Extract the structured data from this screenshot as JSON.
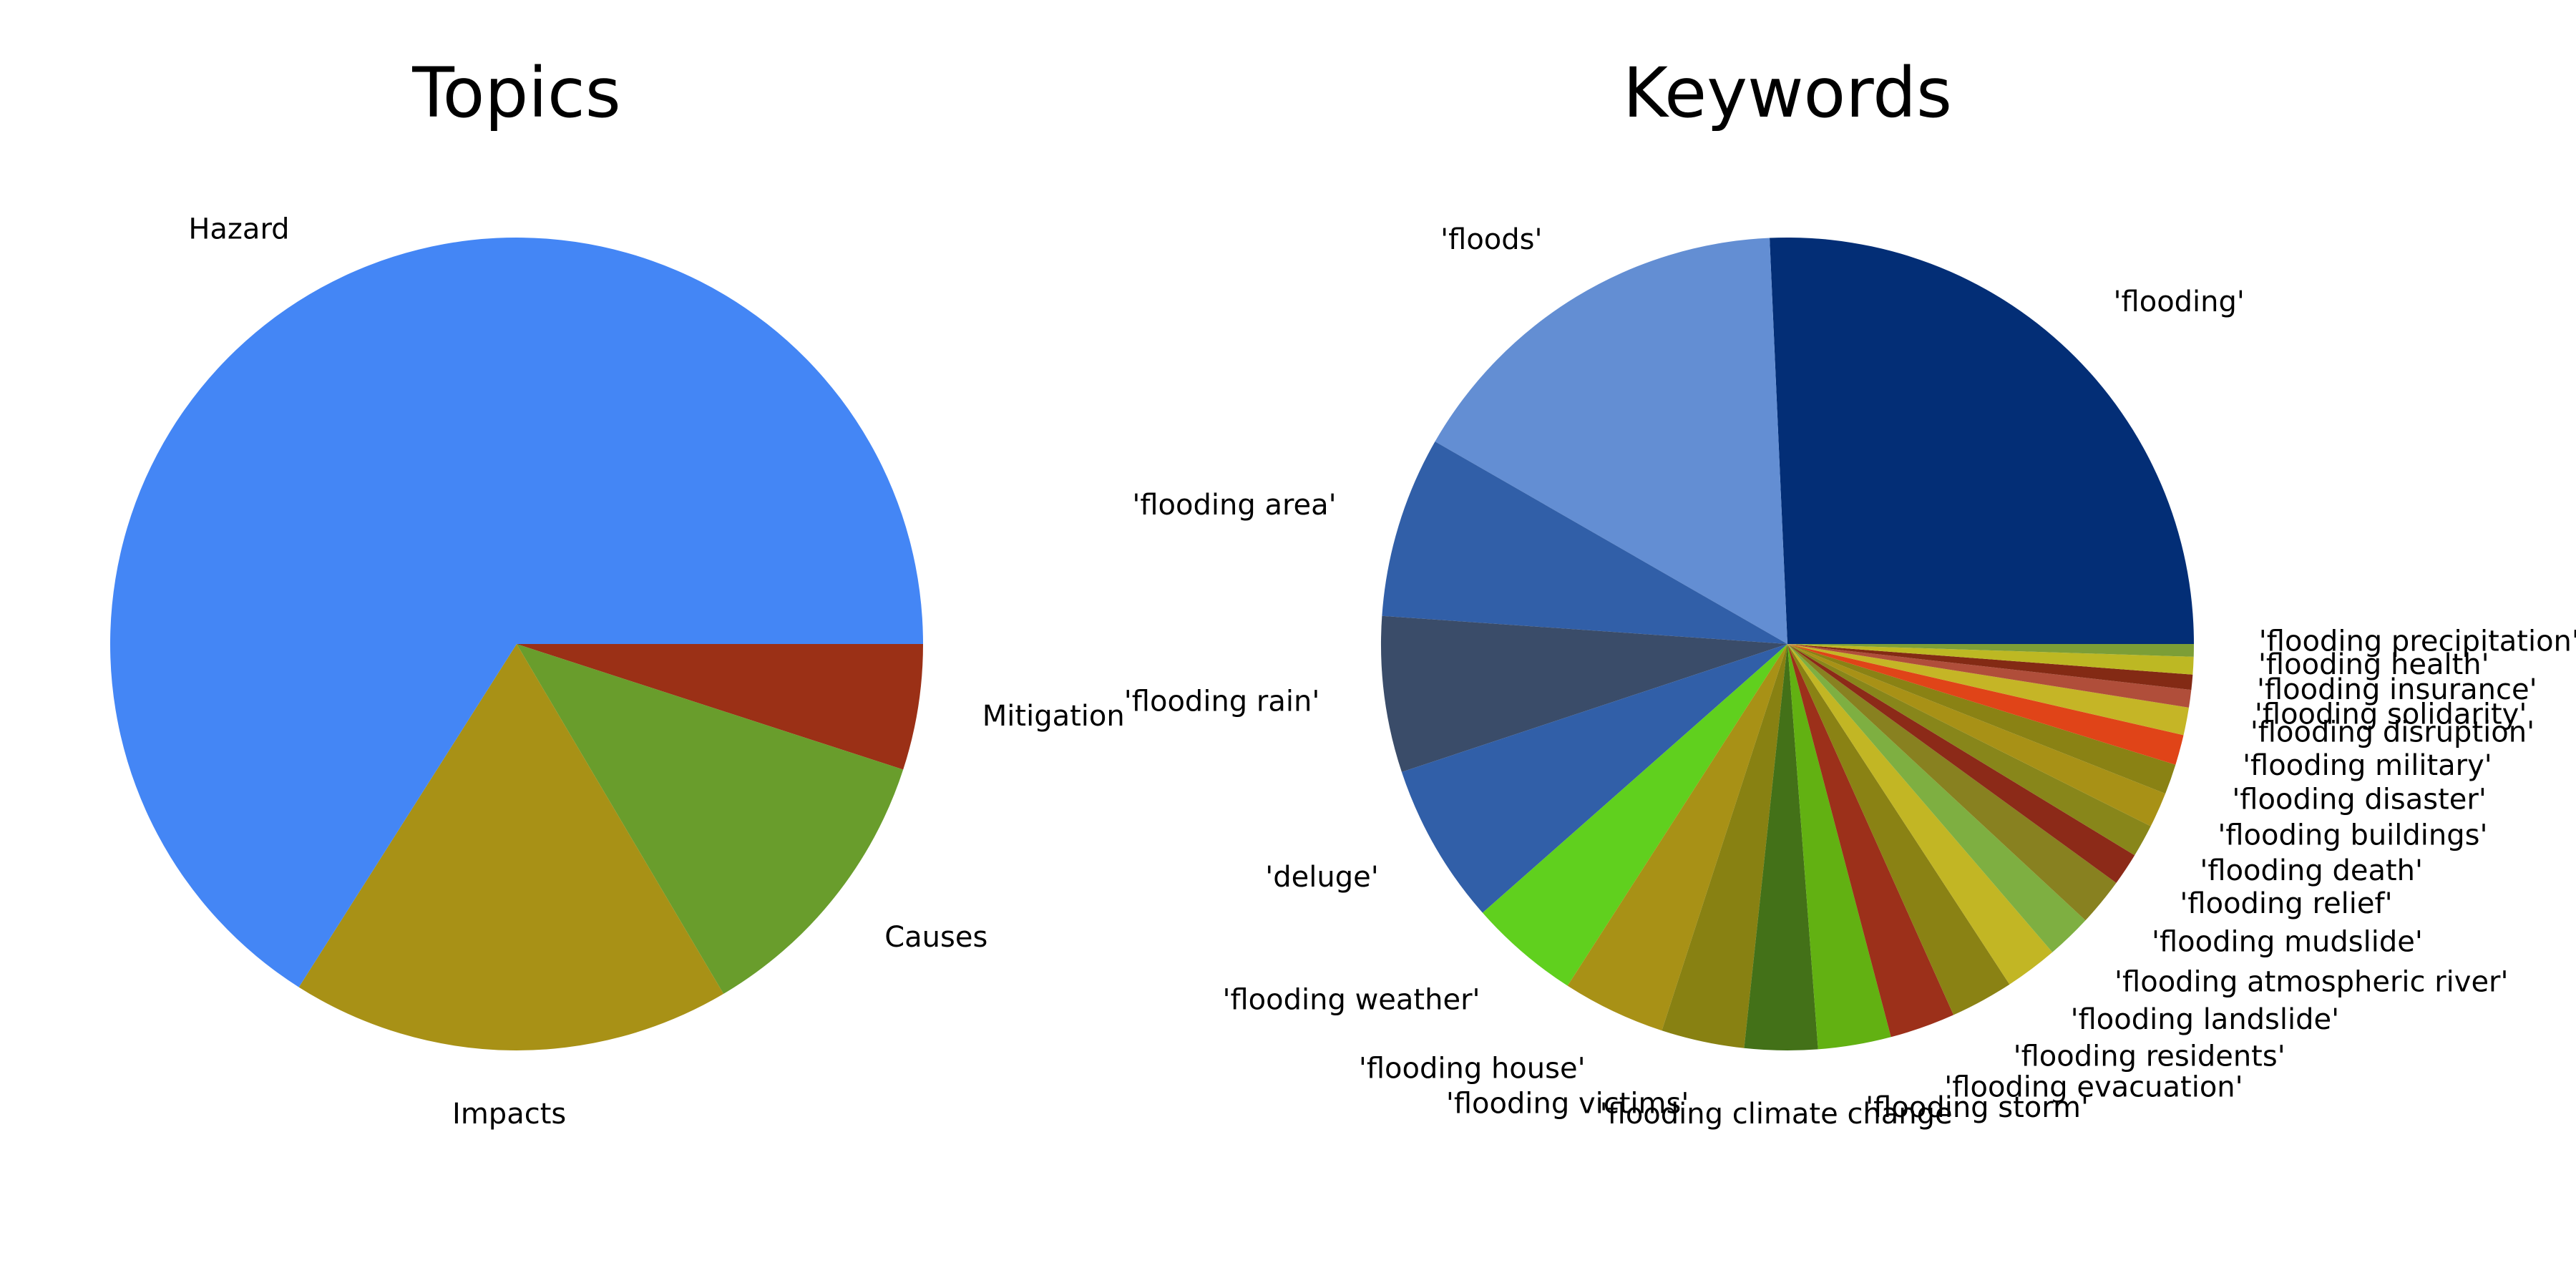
{
  "chart_data": [
    {
      "type": "pie",
      "title": "Topics",
      "start_angle_deg": 0,
      "direction": "clockwise",
      "slices": [
        {
          "label": "Mitigation",
          "value": 5.0,
          "color": "#9B3016"
        },
        {
          "label": "Causes",
          "value": 11.5,
          "color": "#699D2C"
        },
        {
          "label": "Impacts",
          "value": 17.5,
          "color": "#A89116"
        },
        {
          "label": "Hazard",
          "value": 66.0,
          "color": "#4486F5"
        }
      ]
    },
    {
      "type": "pie",
      "title": "Keywords",
      "start_angle_deg": 0,
      "direction": "counterclockwise",
      "slices": [
        {
          "label": "'flooding'",
          "value": 25.7,
          "color": "#032E76"
        },
        {
          "label": "'floods'",
          "value": 16.0,
          "color": "#638ED3"
        },
        {
          "label": "'flooding area'",
          "value": 7.2,
          "color": "#315FA8"
        },
        {
          "label": "'flooding rain'",
          "value": 6.2,
          "color": "#3A4C69"
        },
        {
          "label": "'deluge'",
          "value": 6.4,
          "color": "#315FA8"
        },
        {
          "label": "'flooding weather'",
          "value": 4.4,
          "color": "#60D01E"
        },
        {
          "label": "'flooding house'",
          "value": 4.1,
          "color": "#A89116"
        },
        {
          "label": "'flooding victims'",
          "value": 3.3,
          "color": "#888112"
        },
        {
          "label": "'flooding climate change'",
          "value": 2.9,
          "color": "#437118"
        },
        {
          "label": "'flooding storm'",
          "value": 2.9,
          "color": "#62B112"
        },
        {
          "label": "'flooding evacuation'",
          "value": 2.6,
          "color": "#9C301A"
        },
        {
          "label": "'flooding residents'",
          "value": 2.5,
          "color": "#8A8214"
        },
        {
          "label": "'flooding landslide'",
          "value": 2.1,
          "color": "#C2B624"
        },
        {
          "label": "'flooding atmospheric river'",
          "value": 1.8,
          "color": "#7EAF41"
        },
        {
          "label": "'flooding mudslide'",
          "value": 1.9,
          "color": "#888120"
        },
        {
          "label": "'flooding relief'",
          "value": 1.3,
          "color": "#8C2A18"
        },
        {
          "label": "'flooding death'",
          "value": 1.3,
          "color": "#88861A"
        },
        {
          "label": "'flooding buildings'",
          "value": 1.4,
          "color": "#A89116"
        },
        {
          "label": "'flooding disaster'",
          "value": 1.2,
          "color": "#8A8214"
        },
        {
          "label": "'flooding military'",
          "value": 1.2,
          "color": "#E04418"
        },
        {
          "label": "'flooding disruption'",
          "value": 1.1,
          "color": "#C5B526"
        },
        {
          "label": "'flooding solidarity'",
          "value": 0.7,
          "color": "#B04E3A"
        },
        {
          "label": "'flooding insurance'",
          "value": 0.6,
          "color": "#832A14"
        },
        {
          "label": "'flooding health'",
          "value": 0.7,
          "color": "#BDB823"
        },
        {
          "label": "'flooding precipitation'",
          "value": 0.5,
          "color": "#7C9E36"
        }
      ]
    }
  ]
}
